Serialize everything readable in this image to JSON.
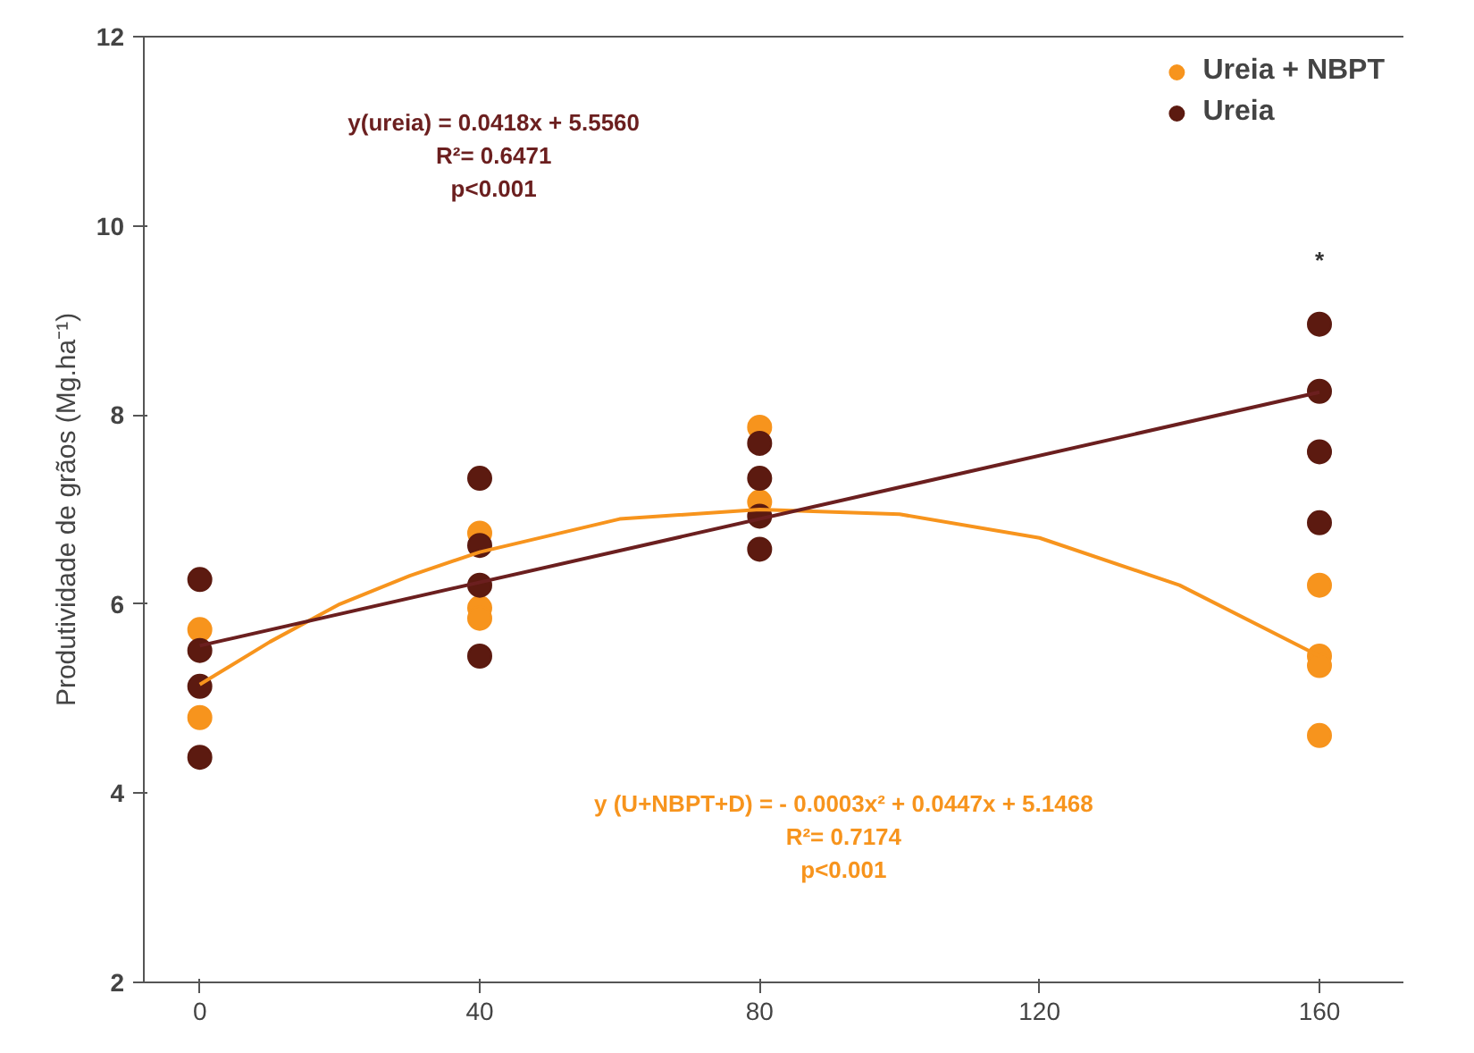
{
  "chart_data": {
    "type": "scatter",
    "ylabel": "Produtividade de grãos (Mg.ha⁻¹)",
    "xlim": [
      -8,
      172
    ],
    "xticks": [
      0,
      40,
      80,
      120,
      160
    ],
    "ylim": [
      2,
      12
    ],
    "yticks": [
      2,
      4,
      6,
      8,
      10,
      12
    ],
    "grid": false,
    "legend": "top right",
    "marker": "circle",
    "series": [
      {
        "name": "Ureia + NBPT",
        "color": "#f7941d",
        "x": [
          0,
          0,
          40,
          40,
          40,
          80,
          80,
          160,
          160,
          160,
          160
        ],
        "values": [
          5.73,
          4.8,
          6.75,
          5.96,
          5.85,
          7.87,
          7.08,
          6.2,
          5.45,
          5.35,
          4.61
        ]
      },
      {
        "name": "Ureia",
        "color": "#5c1a10",
        "x": [
          0,
          0,
          0,
          0,
          40,
          40,
          40,
          40,
          80,
          80,
          80,
          80,
          160,
          160,
          160,
          160
        ],
        "values": [
          6.26,
          5.51,
          5.13,
          4.38,
          7.33,
          6.62,
          6.2,
          5.45,
          7.7,
          7.33,
          6.93,
          6.58,
          8.96,
          8.25,
          7.61,
          6.86
        ]
      },
      {
        "type": "line",
        "marker": "none",
        "color": "#f7941d",
        "x": [
          0,
          10,
          20,
          30,
          40,
          60,
          80,
          100,
          120,
          140,
          160
        ],
        "values": [
          5.15,
          5.6,
          6.0,
          6.3,
          6.55,
          6.9,
          7.0,
          6.95,
          6.7,
          6.2,
          5.45
        ]
      },
      {
        "type": "line",
        "marker": "none",
        "color": "#6b1f1f",
        "x": [
          0,
          160
        ],
        "values": [
          5.56,
          8.24
        ]
      }
    ],
    "annotations": [
      "*",
      "y(ureia) = 0.0418x + 5.5560",
      "R²= 0.6471",
      "p<0.001",
      "y (U+NBPT+D) = - 0.0003x² + 0.0447x + 5.1468",
      "R²= 0.7174",
      "p<0.001"
    ]
  }
}
